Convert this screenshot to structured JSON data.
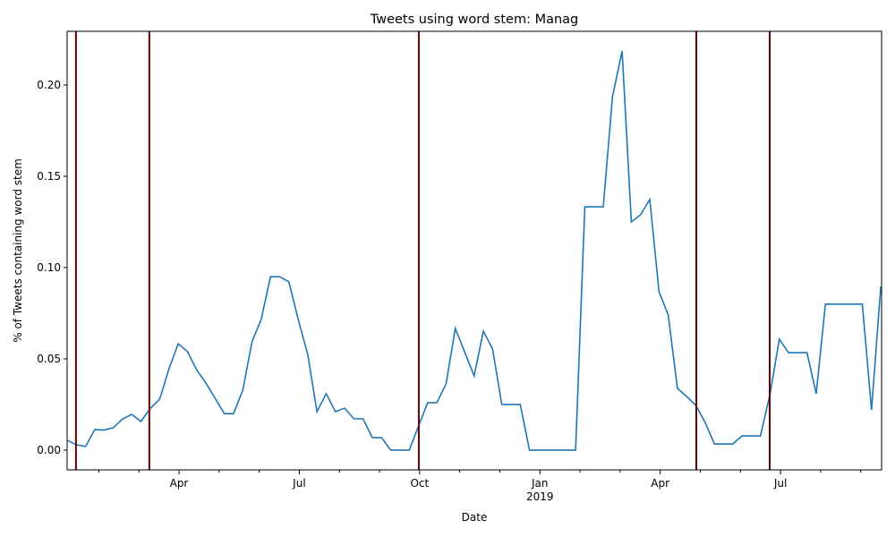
{
  "chart_data": {
    "type": "line",
    "title": "Tweets using word stem: Manag",
    "x_label": "Date",
    "y_label": "% of Tweets containing word stem",
    "x": [
      0.21,
      0.44,
      0.67,
      0.9,
      1.13,
      1.36,
      1.59,
      1.82,
      2.05,
      2.29,
      2.52,
      2.75,
      2.98,
      3.21,
      3.44,
      3.67,
      3.9,
      4.13,
      4.36,
      4.59,
      4.82,
      5.05,
      5.28,
      5.51,
      5.74,
      5.98,
      6.21,
      6.44,
      6.67,
      6.9,
      7.13,
      7.36,
      7.59,
      7.82,
      8.05,
      8.28,
      8.51,
      8.74,
      8.97,
      9.2,
      9.43,
      9.66,
      9.89,
      10.13,
      10.36,
      10.59,
      10.82,
      11.05,
      11.28,
      11.51,
      11.74,
      11.97,
      12.2,
      12.43,
      12.66,
      12.89,
      13.12,
      13.35,
      13.58,
      13.81,
      14.05,
      14.28,
      14.51,
      14.74,
      14.97,
      15.2,
      15.43,
      15.66,
      15.89,
      16.12,
      16.35,
      16.58,
      16.81,
      17.04,
      17.27,
      17.5,
      17.74,
      17.97,
      18.2,
      18.43,
      18.66,
      18.89,
      19.12,
      19.35,
      19.58,
      19.81,
      20.04,
      20.27,
      20.5
    ],
    "series": [
      {
        "color": "#1f77b4",
        "values": [
          0.0054,
          0.003,
          0.002,
          0.0113,
          0.011,
          0.0123,
          0.017,
          0.0196,
          0.0157,
          0.023,
          0.028,
          0.0446,
          0.0583,
          0.054,
          0.044,
          0.0368,
          0.0284,
          0.02,
          0.02,
          0.0328,
          0.0593,
          0.0716,
          0.095,
          0.095,
          0.0922,
          0.071,
          0.0525,
          0.0211,
          0.0309,
          0.0211,
          0.023,
          0.0172,
          0.0172,
          0.0069,
          0.0069,
          0,
          0,
          0,
          0.013,
          0.026,
          0.026,
          0.0363,
          0.0667,
          0.0534,
          0.0407,
          0.0652,
          0.0554,
          0.025,
          0.025,
          0.025,
          0,
          0,
          0,
          0,
          0,
          0,
          0.1333,
          0.1333,
          0.1333,
          0.1936,
          0.2186,
          0.125,
          0.1289,
          0.1373,
          0.0868,
          0.074,
          0.0338,
          0.0294,
          0.0245,
          0.0152,
          0.0034,
          0.0034,
          0.0034,
          0.0078,
          0.0078,
          0.0078,
          0.0309,
          0.0608,
          0.0534,
          0.0534,
          0.0534,
          0.0309,
          0.08,
          0.08,
          0.08,
          0.08,
          0.08,
          0.022,
          0.0897
        ]
      }
    ],
    "xlim": [
      0.21,
      20.52
    ],
    "xticks": [
      {
        "value": 3,
        "label": "Apr"
      },
      {
        "value": 6,
        "label": "Jul"
      },
      {
        "value": 9,
        "label": "Oct"
      },
      {
        "value": 12,
        "label": "Jan"
      },
      {
        "value": 15,
        "label": "Apr"
      },
      {
        "value": 18,
        "label": "Jul"
      }
    ],
    "x_year_label": {
      "value": 12,
      "label": "2019"
    },
    "xminorticks": [
      1,
      2,
      4,
      5,
      7,
      8,
      10,
      11,
      13,
      14,
      16,
      17,
      19,
      20
    ],
    "ylim": [
      -0.0108,
      0.2294
    ],
    "yticks": [
      {
        "value": 0,
        "label": "0.00"
      },
      {
        "value": 0.05,
        "label": "0.05"
      },
      {
        "value": 0.1,
        "label": "0.10"
      },
      {
        "value": 0.15,
        "label": "0.15"
      },
      {
        "value": 0.2,
        "label": "0.20"
      }
    ],
    "vlines": [
      0.43,
      2.26,
      8.98,
      15.9,
      17.73
    ],
    "vline_color": "#660000"
  }
}
